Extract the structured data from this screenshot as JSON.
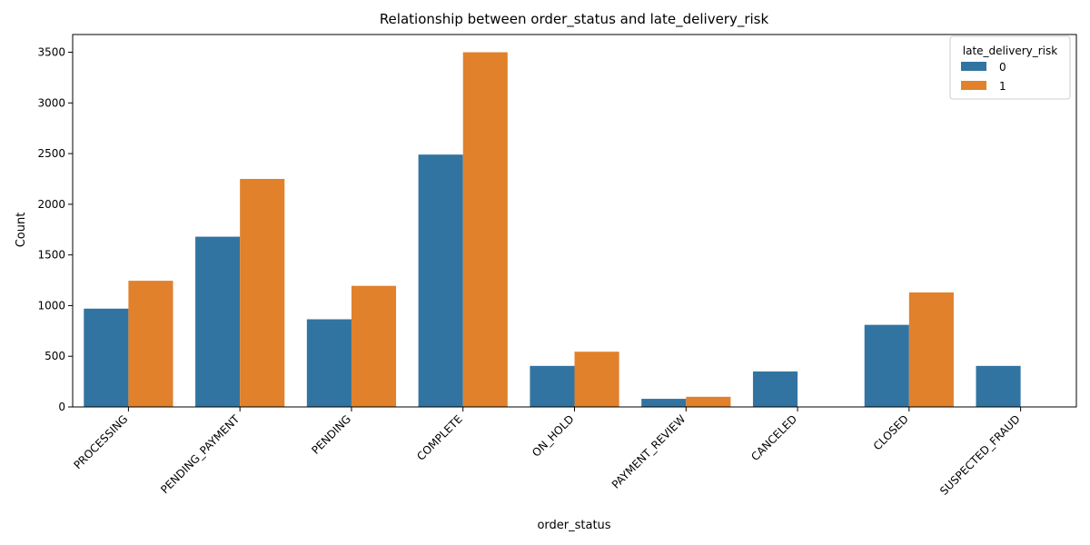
{
  "chart_data": {
    "type": "bar",
    "title": "Relationship between order_status and late_delivery_risk",
    "xlabel": "order_status",
    "ylabel": "Count",
    "categories": [
      "PROCESSING",
      "PENDING_PAYMENT",
      "PENDING",
      "COMPLETE",
      "ON_HOLD",
      "PAYMENT_REVIEW",
      "CANCELED",
      "CLOSED",
      "SUSPECTED_FRAUD"
    ],
    "series": [
      {
        "name": "0",
        "color": "#3274a1",
        "values": [
          970,
          1680,
          865,
          2490,
          405,
          80,
          350,
          810,
          405
        ]
      },
      {
        "name": "1",
        "color": "#e1812c",
        "values": [
          1245,
          2250,
          1195,
          3500,
          545,
          100,
          0,
          1130,
          0
        ]
      }
    ],
    "ylim": [
      0,
      3675
    ],
    "yticks": [
      0,
      500,
      1000,
      1500,
      2000,
      2500,
      3000,
      3500
    ],
    "legend": {
      "title": "late_delivery_risk",
      "position": "top-right"
    },
    "grid": false
  }
}
